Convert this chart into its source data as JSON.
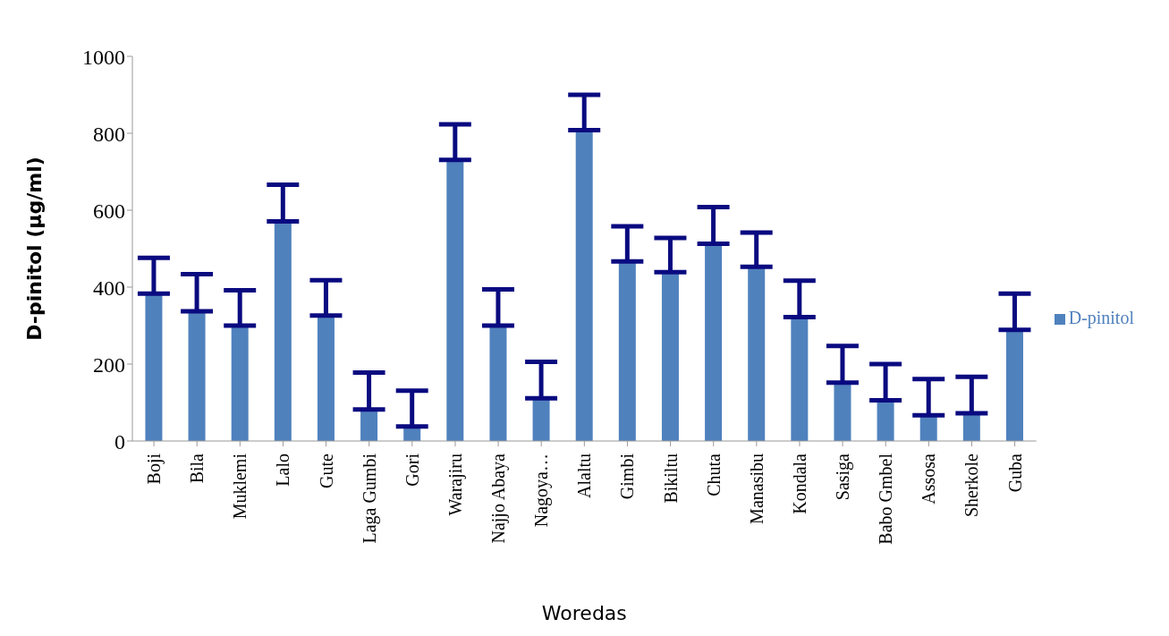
{
  "chart_data": {
    "type": "bar",
    "xlabel": "Woredas",
    "ylabel": "D-pinitol (µg/ml)",
    "categories": [
      "Boji",
      "Bila",
      "Muklemi",
      "Lalo",
      "Gute",
      "Laga Gumbi",
      "Gori",
      "Warajiru",
      "Najjo Abaya",
      "Nagoya…",
      "Alaltu",
      "Gimbi",
      "Bikiltu",
      "Chuta",
      "Manasibu",
      "Kondala",
      "Sasiga",
      "Babo Gmbel",
      "Assosa",
      "Sherkole",
      "Guba"
    ],
    "series": [
      {
        "name": "D-pinitol",
        "color": "#4f81bd",
        "values": [
          383,
          337,
          300,
          571,
          326,
          82,
          38,
          731,
          300,
          111,
          808,
          467,
          439,
          513,
          453,
          322,
          152,
          106,
          67,
          72,
          289
        ],
        "errors": [
          [
            383,
            476
          ],
          [
            337,
            434
          ],
          [
            300,
            392
          ],
          [
            571,
            666
          ],
          [
            326,
            418
          ],
          [
            82,
            178
          ],
          [
            38,
            131
          ],
          [
            731,
            823
          ],
          [
            300,
            394
          ],
          [
            111,
            206
          ],
          [
            808,
            900
          ],
          [
            467,
            558
          ],
          [
            439,
            528
          ],
          [
            513,
            608
          ],
          [
            453,
            542
          ],
          [
            322,
            417
          ],
          [
            152,
            247
          ],
          [
            106,
            200
          ],
          [
            67,
            161
          ],
          [
            72,
            167
          ],
          [
            289,
            383
          ]
        ]
      }
    ],
    "ylim": [
      0,
      1000
    ],
    "yticks": [
      0,
      200,
      400,
      600,
      800,
      1000
    ],
    "grid": false,
    "legend": "right"
  }
}
